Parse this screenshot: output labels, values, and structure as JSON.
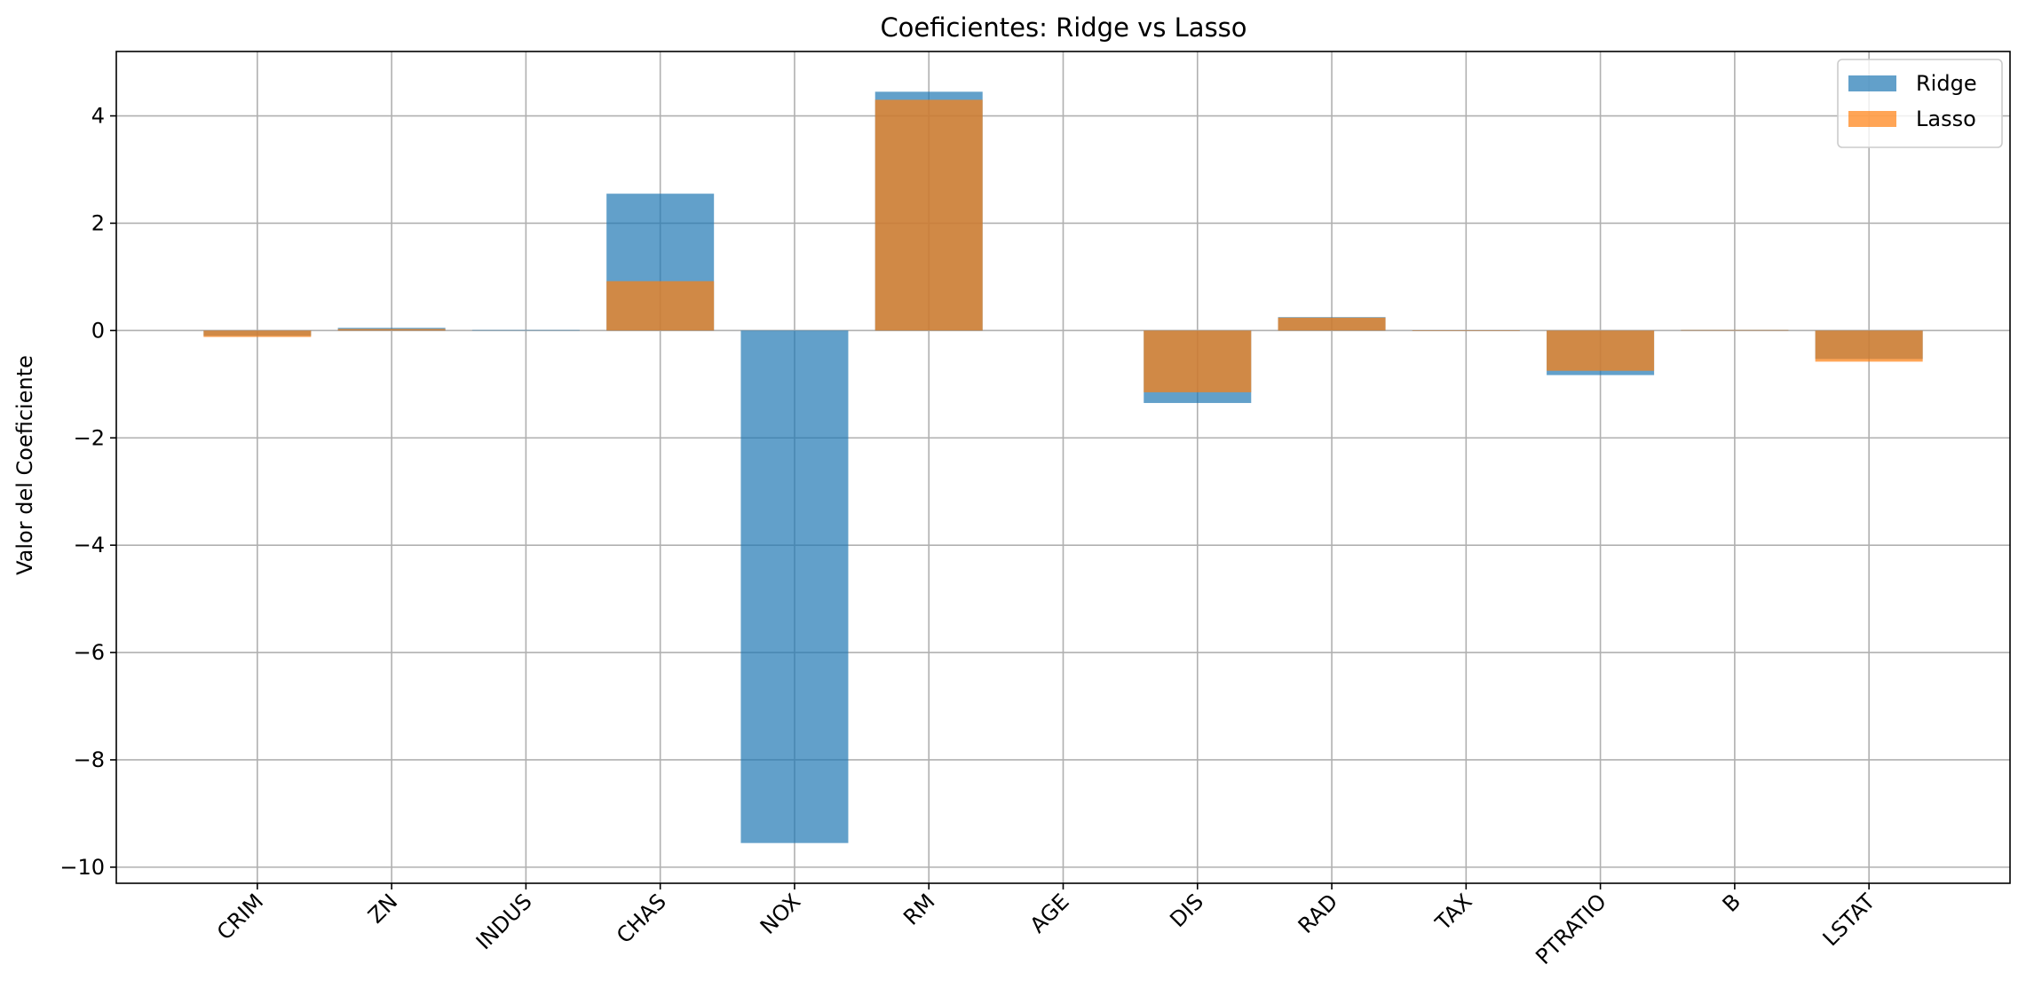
{
  "chart_data": {
    "type": "bar",
    "title": "Coeficientes: Ridge vs Lasso",
    "xlabel": "",
    "ylabel": "Valor del Coeficiente",
    "categories": [
      "CRIM",
      "ZN",
      "INDUS",
      "CHAS",
      "NOX",
      "RM",
      "AGE",
      "DIS",
      "RAD",
      "TAX",
      "PTRATIO",
      "B",
      "LSTAT"
    ],
    "series": [
      {
        "name": "Ridge",
        "color": "#1f77b4",
        "opacity": 0.7,
        "values": [
          -0.1,
          0.05,
          0.01,
          2.55,
          -9.55,
          4.45,
          0.0,
          -1.35,
          0.25,
          -0.01,
          -0.83,
          0.01,
          -0.53
        ]
      },
      {
        "name": "Lasso",
        "color": "#ff7f0e",
        "opacity": 0.7,
        "values": [
          -0.12,
          0.03,
          0.0,
          0.92,
          0.0,
          4.3,
          0.0,
          -1.15,
          0.24,
          -0.01,
          -0.75,
          0.01,
          -0.58
        ]
      }
    ],
    "ylim": [
      -10.3,
      5.2
    ],
    "yticks": [
      4,
      2,
      0,
      -2,
      -4,
      -6,
      -8,
      -10
    ],
    "ytick_labels": [
      "4",
      "2",
      "0",
      "−2",
      "−4",
      "−6",
      "−8",
      "−10"
    ],
    "grid": true,
    "legend_position": "top-right"
  }
}
